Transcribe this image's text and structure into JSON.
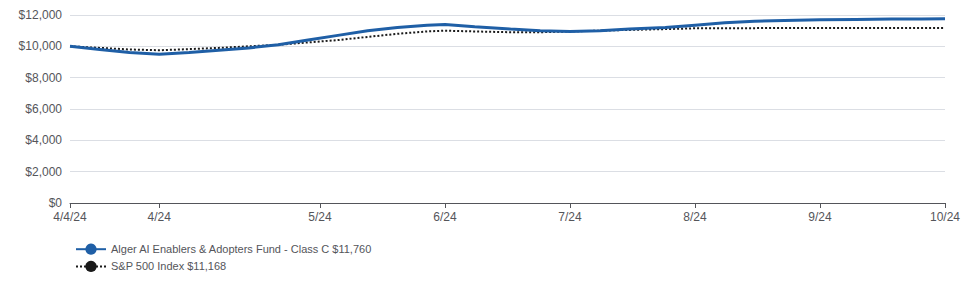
{
  "chart_data": {
    "type": "line",
    "x": [
      0,
      5,
      10,
      15,
      20,
      25,
      30,
      35,
      40,
      45,
      50,
      55,
      60,
      63,
      68,
      74,
      79,
      84,
      89,
      94,
      100,
      105,
      110,
      115,
      120,
      126,
      132,
      138,
      143,
      147
    ],
    "xlim": [
      0,
      147
    ],
    "xticks": [
      {
        "value": 0,
        "label": "4/4/24"
      },
      {
        "value": 15,
        "label": "4/24"
      },
      {
        "value": 42,
        "label": "5/24"
      },
      {
        "value": 63,
        "label": "6/24"
      },
      {
        "value": 84,
        "label": "7/24"
      },
      {
        "value": 105,
        "label": "8/24"
      },
      {
        "value": 126,
        "label": "9/24"
      },
      {
        "value": 147,
        "label": "10/24"
      }
    ],
    "ylim": [
      0,
      12000
    ],
    "yticks": [
      {
        "value": 0,
        "label": "$0"
      },
      {
        "value": 2000,
        "label": "$2,000"
      },
      {
        "value": 4000,
        "label": "$4,000"
      },
      {
        "value": 6000,
        "label": "$6,000"
      },
      {
        "value": 8000,
        "label": "$8,000"
      },
      {
        "value": 10000,
        "label": "$10,000"
      },
      {
        "value": 12000,
        "label": "$12,000"
      }
    ],
    "grid": true,
    "legend": "bottom",
    "series": [
      {
        "name": "Alger AI Enablers & Adopters Fund - Class C $11,760",
        "color": "#1F5FA6",
        "line_style": "solid",
        "values": [
          10000,
          9800,
          9600,
          9500,
          9600,
          9750,
          9900,
          10100,
          10400,
          10700,
          11000,
          11200,
          11350,
          11400,
          11250,
          11100,
          11000,
          10950,
          11000,
          11100,
          11200,
          11350,
          11500,
          11600,
          11650,
          11700,
          11720,
          11740,
          11750,
          11760
        ]
      },
      {
        "name": "S&P 500 Index $11,168",
        "color": "#1a1a1a",
        "line_style": "dotted",
        "values": [
          10000,
          9900,
          9800,
          9750,
          9820,
          9900,
          10000,
          10100,
          10250,
          10400,
          10600,
          10800,
          10950,
          11000,
          10950,
          10900,
          10900,
          10950,
          11000,
          11050,
          11100,
          11150,
          11160,
          11162,
          11165,
          11164,
          11166,
          11167,
          11167,
          11168
        ]
      }
    ]
  }
}
